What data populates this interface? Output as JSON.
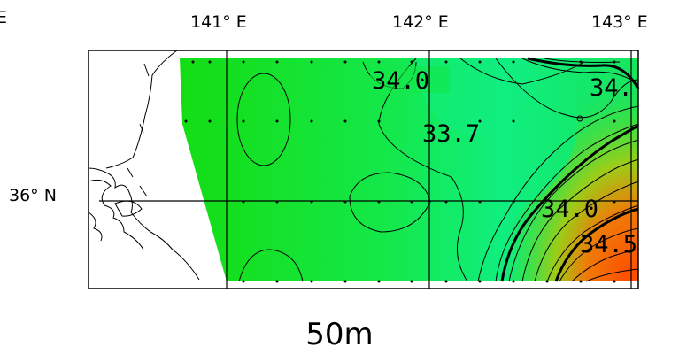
{
  "map": {
    "lon_labels": [
      "141° E",
      "142° E",
      "143° E"
    ],
    "lat_labels": [
      "36° N"
    ],
    "edge_label_left": "E",
    "contour_labels": [
      "34.0",
      "33.7",
      "34.",
      "34.0",
      "34.5"
    ],
    "depth_label": "50m",
    "colors": {
      "low": "#10e010",
      "mid": "#12ee60",
      "high": "#ff4a00",
      "land": "#ffffff",
      "frame": "#000000"
    }
  }
}
